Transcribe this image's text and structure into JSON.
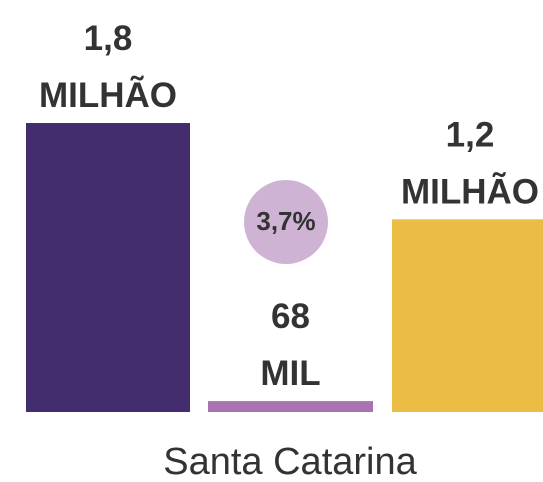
{
  "chart_data": {
    "type": "bar",
    "categories": [
      "Santa Catarina"
    ],
    "series": [
      {
        "color": "#432d6e",
        "values": [
          1800000
        ],
        "value_labels": [
          "1,8 MILHÃO"
        ]
      },
      {
        "color": "#a873b0",
        "values": [
          68000
        ],
        "value_labels": [
          "68 MIL"
        ]
      },
      {
        "color": "#ecbd45",
        "values": [
          1200000
        ],
        "value_labels": [
          "1,2 MILHÃO"
        ]
      }
    ],
    "annotation": {
      "text": "3,7%",
      "color": "#cfb3d4"
    }
  }
}
